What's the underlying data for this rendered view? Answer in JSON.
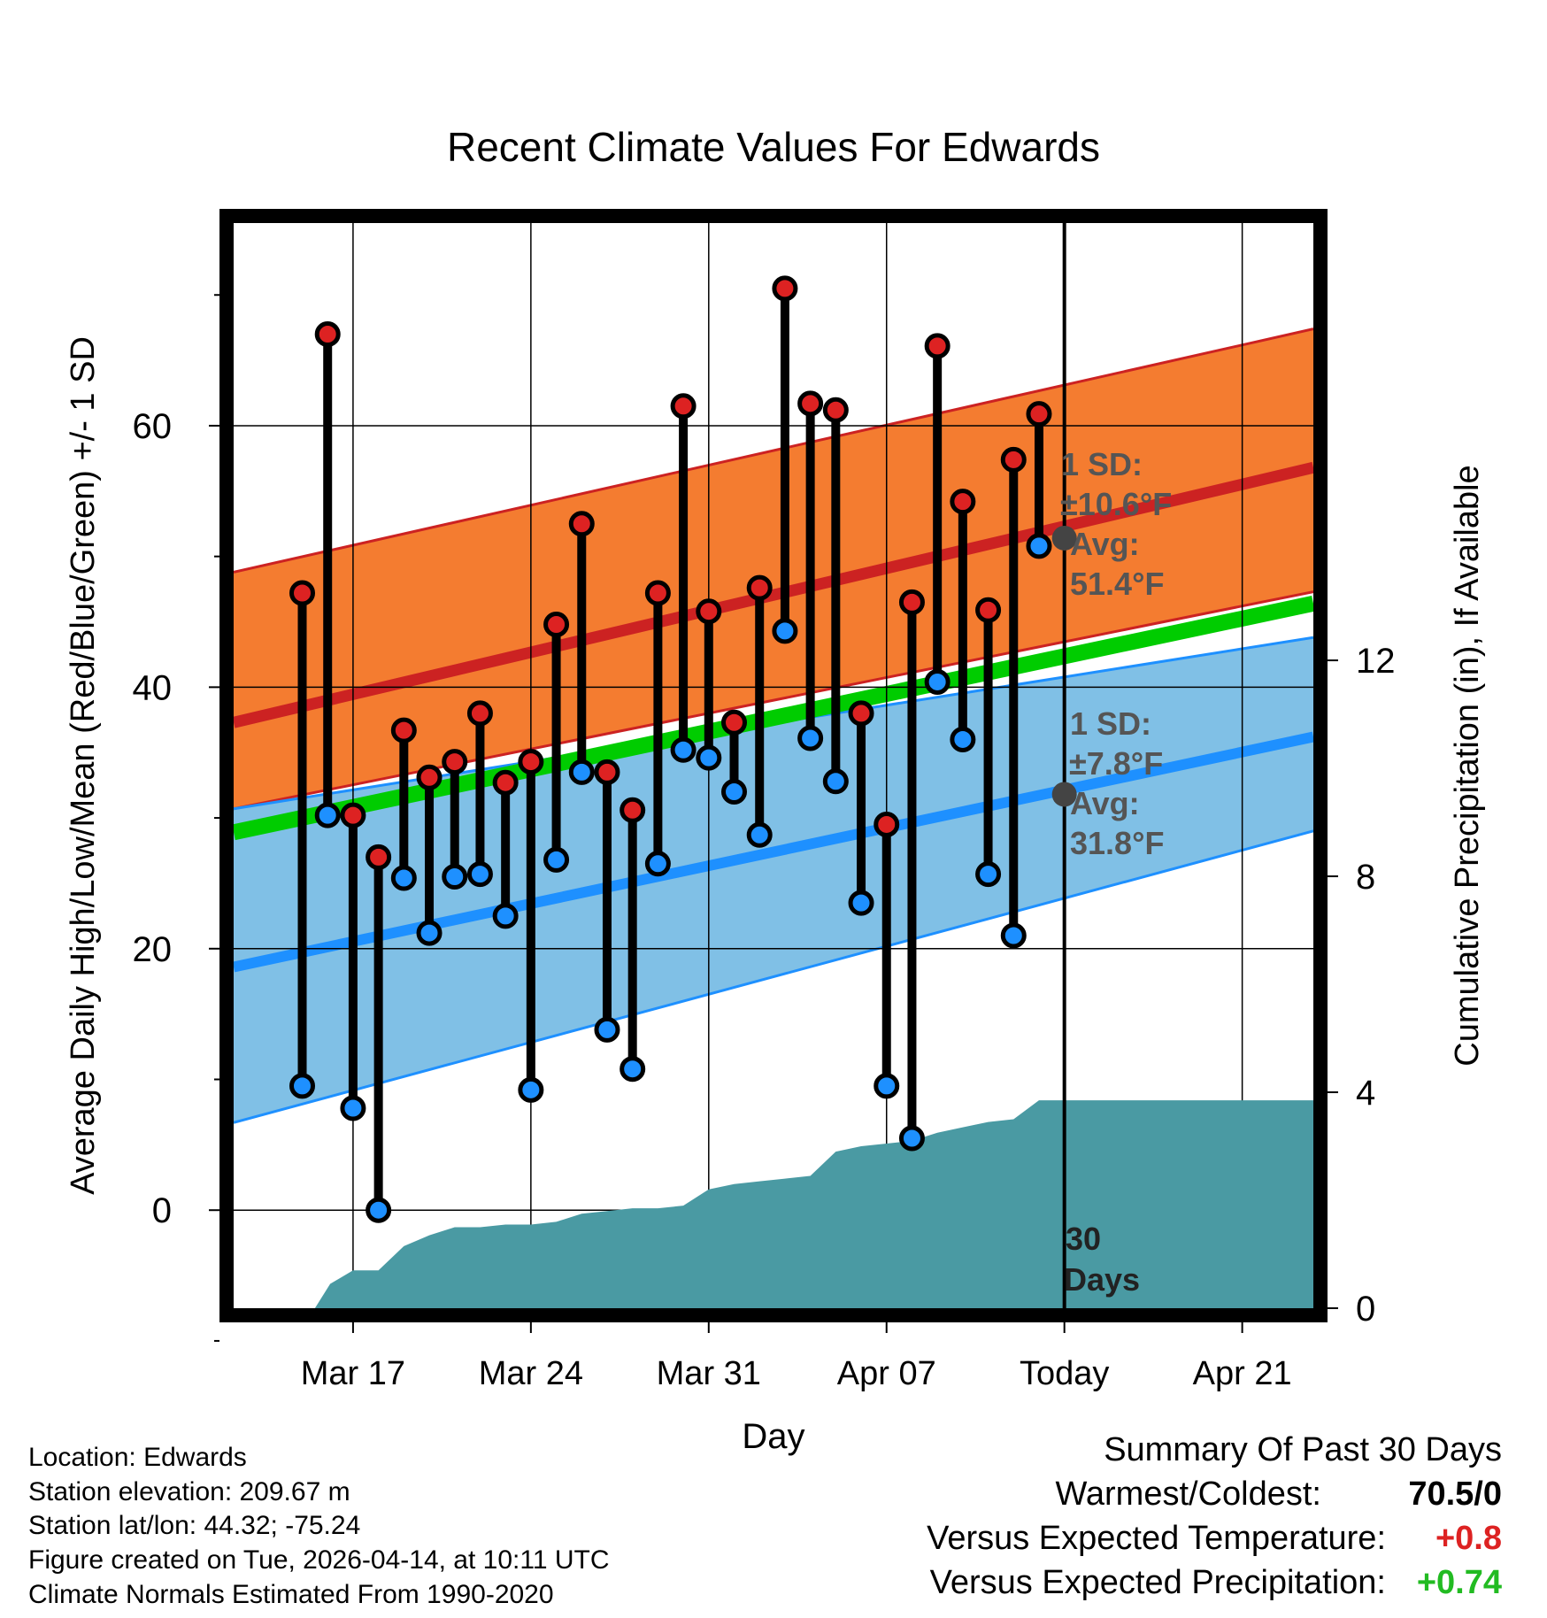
{
  "chart_data": {
    "type": "climate-daily-range",
    "title": "Recent Climate Values For Edwards",
    "xlabel": "Day",
    "ylabel_left": "Average Daily High/Low/Mean (Red/Blue/Green) +/- 1 SD",
    "ylabel_right": "Cumulative Precipitation (in), If Available",
    "y_left_range": [
      -7.5,
      75.5
    ],
    "y_left_ticks": [
      0,
      20,
      40,
      60
    ],
    "y_right_range": [
      0,
      20.1
    ],
    "y_right_ticks": [
      0,
      4,
      8,
      12
    ],
    "x_range_days": [
      -32.7,
      9.8
    ],
    "x_ticks": [
      {
        "day": -28,
        "label": "Mar 17"
      },
      {
        "day": -21,
        "label": "Mar 24"
      },
      {
        "day": -14,
        "label": "Mar 31"
      },
      {
        "day": -7,
        "label": "Apr 07"
      },
      {
        "day": 0,
        "label": "Today"
      },
      {
        "day": 7,
        "label": "Apr 21"
      }
    ],
    "normal_high": {
      "avg_start": 37.3,
      "avg_end": 56.8,
      "upper_start": 48.8,
      "upper_end": 67.4,
      "lower_start": 30.7,
      "lower_end": 47.3
    },
    "normal_low": {
      "avg_start": 18.6,
      "avg_end": 36.2,
      "upper_start": 30.7,
      "upper_end": 43.8,
      "lower_start": 6.7,
      "lower_end": 29.0
    },
    "normal_mean": {
      "start": 28.9,
      "end": 46.4
    },
    "daily": [
      {
        "day": -30,
        "high": 47.2,
        "low": 9.5
      },
      {
        "day": -29,
        "high": 67.0,
        "low": 30.2
      },
      {
        "day": -28,
        "high": 30.2,
        "low": 7.8
      },
      {
        "day": -27,
        "high": 27.0,
        "low": 0.0
      },
      {
        "day": -26,
        "high": 36.7,
        "low": 25.4
      },
      {
        "day": -25,
        "high": 33.1,
        "low": 21.2
      },
      {
        "day": -24,
        "high": 34.3,
        "low": 25.5
      },
      {
        "day": -23,
        "high": 38.0,
        "low": 25.7
      },
      {
        "day": -22,
        "high": 32.7,
        "low": 22.5
      },
      {
        "day": -21,
        "high": 34.3,
        "low": 9.2
      },
      {
        "day": -20,
        "high": 44.8,
        "low": 26.8
      },
      {
        "day": -19,
        "high": 52.5,
        "low": 33.5
      },
      {
        "day": -18,
        "high": 33.5,
        "low": 13.8
      },
      {
        "day": -17,
        "high": 30.6,
        "low": 10.8
      },
      {
        "day": -16,
        "high": 47.2,
        "low": 26.5
      },
      {
        "day": -15,
        "high": 61.5,
        "low": 35.2
      },
      {
        "day": -14,
        "high": 45.8,
        "low": 34.6
      },
      {
        "day": -13,
        "high": 37.3,
        "low": 32.0
      },
      {
        "day": -12,
        "high": 47.6,
        "low": 28.7
      },
      {
        "day": -11,
        "high": 70.5,
        "low": 44.3
      },
      {
        "day": -10,
        "high": 61.7,
        "low": 36.1
      },
      {
        "day": -9,
        "high": 61.2,
        "low": 32.8
      },
      {
        "day": -8,
        "high": 38.0,
        "low": 23.5
      },
      {
        "day": -7,
        "high": 29.5,
        "low": 9.5
      },
      {
        "day": -6,
        "high": 46.5,
        "low": 5.5
      },
      {
        "day": -5,
        "high": 66.1,
        "low": 40.4
      },
      {
        "day": -4,
        "high": 54.2,
        "low": 36.0
      },
      {
        "day": -3,
        "high": 45.9,
        "low": 25.7
      },
      {
        "day": -2,
        "high": 57.4,
        "low": 21.0
      },
      {
        "day": -1,
        "high": 60.9,
        "low": 50.8
      }
    ],
    "precip_cumulative": [
      {
        "day": -30.3,
        "in": 0.0
      },
      {
        "day": -29.5,
        "in": 0.0
      },
      {
        "day": -28.9,
        "in": 0.45
      },
      {
        "day": -28.0,
        "in": 0.7
      },
      {
        "day": -27.0,
        "in": 0.7
      },
      {
        "day": -26.0,
        "in": 1.15
      },
      {
        "day": -25.0,
        "in": 1.35
      },
      {
        "day": -24.0,
        "in": 1.5
      },
      {
        "day": -23.0,
        "in": 1.5
      },
      {
        "day": -22.0,
        "in": 1.55
      },
      {
        "day": -21.0,
        "in": 1.55
      },
      {
        "day": -20.0,
        "in": 1.6
      },
      {
        "day": -19.0,
        "in": 1.75
      },
      {
        "day": -18.0,
        "in": 1.8
      },
      {
        "day": -17.0,
        "in": 1.85
      },
      {
        "day": -16.0,
        "in": 1.85
      },
      {
        "day": -15.0,
        "in": 1.9
      },
      {
        "day": -14.0,
        "in": 2.2
      },
      {
        "day": -13.0,
        "in": 2.3
      },
      {
        "day": -12.0,
        "in": 2.35
      },
      {
        "day": -11.0,
        "in": 2.4
      },
      {
        "day": -10.0,
        "in": 2.45
      },
      {
        "day": -9.0,
        "in": 2.9
      },
      {
        "day": -8.0,
        "in": 3.0
      },
      {
        "day": -7.0,
        "in": 3.05
      },
      {
        "day": -6.0,
        "in": 3.1
      },
      {
        "day": -5.0,
        "in": 3.25
      },
      {
        "day": -4.0,
        "in": 3.35
      },
      {
        "day": -3.0,
        "in": 3.45
      },
      {
        "day": -2.0,
        "in": 3.5
      },
      {
        "day": -1.0,
        "in": 3.85
      },
      {
        "day": 9.8,
        "in": 3.85
      }
    ],
    "today_high_marker": 51.4,
    "today_low_marker": 31.8,
    "annotations": {
      "high_sd_label": "1 SD:",
      "high_sd_value": "±10.6°F",
      "high_avg_label": "Avg:",
      "high_avg_value": "51.4°F",
      "low_sd_label": "1 SD:",
      "low_sd_value": "±7.8°F",
      "low_avg_label": "Avg:",
      "low_avg_value": "31.8°F",
      "days_line1": "30",
      "days_line2": "Days"
    },
    "colors": {
      "high_band": "#f47c30",
      "high_line": "#cc2222",
      "low_band": "#80c0e6",
      "low_line": "#1e90ff",
      "mean_line": "#00cc00",
      "precip": "#4a9aa3",
      "high_dot": "#dd2222",
      "low_dot": "#1e90ff",
      "annotation": "#555555"
    }
  },
  "info": {
    "location": "Location: Edwards",
    "elevation": "Station elevation: 209.67 m",
    "latlon": "Station lat/lon: 44.32; -75.24",
    "created": "Figure created on Tue, 2026-04-14, at 10:11 UTC",
    "normals": "Climate Normals Estimated From 1990-2020"
  },
  "summary": {
    "title": "Summary Of Past 30 Days",
    "warm_label": "Warmest/Coldest:",
    "warm_value": "70.5/0",
    "temp_label": "Versus Expected Temperature:",
    "temp_value": "+0.8",
    "precip_label": "Versus Expected Precipitation:",
    "precip_value": "+0.74",
    "temp_color": "#dd2222",
    "precip_color": "#22bb22"
  }
}
